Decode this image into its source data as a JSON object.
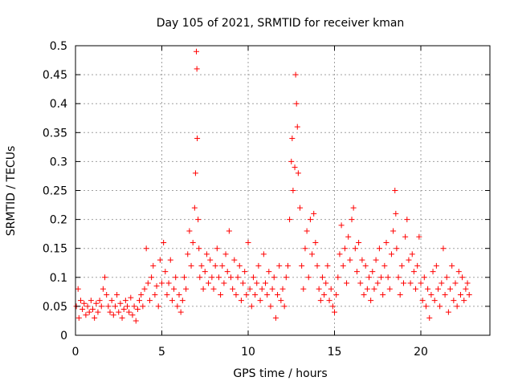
{
  "chart_data": {
    "type": "scatter",
    "title": "Day 105 of 2021, SRMTID for receiver kman",
    "xlabel": "GPS time / hours",
    "ylabel": "SRMTID / TECUs",
    "xlim": [
      0,
      24
    ],
    "ylim": [
      0,
      0.5
    ],
    "xticks": [
      0,
      5,
      10,
      15,
      20
    ],
    "xtick_labels": [
      "0",
      "5",
      "10",
      "15",
      "20"
    ],
    "yticks": [
      0,
      0.05,
      0.1,
      0.15,
      0.2,
      0.25,
      0.3,
      0.35,
      0.4,
      0.45,
      0.5
    ],
    "ytick_labels": [
      "0",
      "0.05",
      "0.1",
      "0.15",
      "0.2",
      "0.25",
      "0.3",
      "0.35",
      "0.4",
      "0.45",
      "0.5"
    ],
    "grid": true,
    "marker": "+",
    "color": "#ff0000",
    "series": [
      {
        "name": "SRMTID",
        "points": [
          [
            0.05,
            0.05
          ],
          [
            0.15,
            0.08
          ],
          [
            0.2,
            0.03
          ],
          [
            0.3,
            0.06
          ],
          [
            0.4,
            0.045
          ],
          [
            0.5,
            0.055
          ],
          [
            0.6,
            0.035
          ],
          [
            0.7,
            0.05
          ],
          [
            0.8,
            0.04
          ],
          [
            0.9,
            0.06
          ],
          [
            1.0,
            0.045
          ],
          [
            1.1,
            0.03
          ],
          [
            1.2,
            0.055
          ],
          [
            1.3,
            0.04
          ],
          [
            1.4,
            0.06
          ],
          [
            1.5,
            0.05
          ],
          [
            1.6,
            0.08
          ],
          [
            1.7,
            0.1
          ],
          [
            1.8,
            0.07
          ],
          [
            1.9,
            0.05
          ],
          [
            2.0,
            0.04
          ],
          [
            2.1,
            0.06
          ],
          [
            2.2,
            0.035
          ],
          [
            2.3,
            0.05
          ],
          [
            2.4,
            0.07
          ],
          [
            2.5,
            0.04
          ],
          [
            2.6,
            0.055
          ],
          [
            2.7,
            0.03
          ],
          [
            2.8,
            0.045
          ],
          [
            2.9,
            0.06
          ],
          [
            3.0,
            0.05
          ],
          [
            3.1,
            0.04
          ],
          [
            3.2,
            0.065
          ],
          [
            3.3,
            0.035
          ],
          [
            3.4,
            0.05
          ],
          [
            3.5,
            0.025
          ],
          [
            3.6,
            0.045
          ],
          [
            3.7,
            0.06
          ],
          [
            3.8,
            0.07
          ],
          [
            3.9,
            0.05
          ],
          [
            4.0,
            0.08
          ],
          [
            4.1,
            0.15
          ],
          [
            4.2,
            0.09
          ],
          [
            4.3,
            0.06
          ],
          [
            4.4,
            0.1
          ],
          [
            4.5,
            0.12
          ],
          [
            4.6,
            0.07
          ],
          [
            4.7,
            0.085
          ],
          [
            4.8,
            0.05
          ],
          [
            4.9,
            0.13
          ],
          [
            5.0,
            0.09
          ],
          [
            5.1,
            0.16
          ],
          [
            5.2,
            0.11
          ],
          [
            5.3,
            0.07
          ],
          [
            5.4,
            0.09
          ],
          [
            5.5,
            0.13
          ],
          [
            5.6,
            0.06
          ],
          [
            5.7,
            0.08
          ],
          [
            5.8,
            0.1
          ],
          [
            5.9,
            0.05
          ],
          [
            6.0,
            0.07
          ],
          [
            6.1,
            0.04
          ],
          [
            6.2,
            0.06
          ],
          [
            6.3,
            0.1
          ],
          [
            6.4,
            0.08
          ],
          [
            6.5,
            0.14
          ],
          [
            6.6,
            0.18
          ],
          [
            6.7,
            0.12
          ],
          [
            6.8,
            0.16
          ],
          [
            6.9,
            0.22
          ],
          [
            6.95,
            0.28
          ],
          [
            7.0,
            0.49
          ],
          [
            7.03,
            0.46
          ],
          [
            7.05,
            0.34
          ],
          [
            7.1,
            0.2
          ],
          [
            7.15,
            0.15
          ],
          [
            7.2,
            0.1
          ],
          [
            7.3,
            0.12
          ],
          [
            7.4,
            0.08
          ],
          [
            7.5,
            0.11
          ],
          [
            7.6,
            0.14
          ],
          [
            7.7,
            0.09
          ],
          [
            7.8,
            0.13
          ],
          [
            7.9,
            0.1
          ],
          [
            8.0,
            0.08
          ],
          [
            8.1,
            0.12
          ],
          [
            8.2,
            0.15
          ],
          [
            8.3,
            0.1
          ],
          [
            8.4,
            0.07
          ],
          [
            8.5,
            0.12
          ],
          [
            8.6,
            0.09
          ],
          [
            8.7,
            0.14
          ],
          [
            8.8,
            0.11
          ],
          [
            8.9,
            0.18
          ],
          [
            9.0,
            0.1
          ],
          [
            9.1,
            0.08
          ],
          [
            9.2,
            0.13
          ],
          [
            9.3,
            0.07
          ],
          [
            9.4,
            0.1
          ],
          [
            9.5,
            0.12
          ],
          [
            9.6,
            0.06
          ],
          [
            9.7,
            0.09
          ],
          [
            9.8,
            0.11
          ],
          [
            9.9,
            0.07
          ],
          [
            10.0,
            0.16
          ],
          [
            10.1,
            0.08
          ],
          [
            10.2,
            0.05
          ],
          [
            10.3,
            0.1
          ],
          [
            10.4,
            0.07
          ],
          [
            10.5,
            0.09
          ],
          [
            10.6,
            0.12
          ],
          [
            10.7,
            0.06
          ],
          [
            10.8,
            0.08
          ],
          [
            10.9,
            0.14
          ],
          [
            11.0,
            0.09
          ],
          [
            11.1,
            0.07
          ],
          [
            11.2,
            0.11
          ],
          [
            11.3,
            0.05
          ],
          [
            11.4,
            0.08
          ],
          [
            11.5,
            0.1
          ],
          [
            11.6,
            0.03
          ],
          [
            11.7,
            0.07
          ],
          [
            11.8,
            0.12
          ],
          [
            11.9,
            0.06
          ],
          [
            12.0,
            0.08
          ],
          [
            12.1,
            0.05
          ],
          [
            12.2,
            0.1
          ],
          [
            12.3,
            0.12
          ],
          [
            12.4,
            0.2
          ],
          [
            12.5,
            0.3
          ],
          [
            12.55,
            0.34
          ],
          [
            12.6,
            0.25
          ],
          [
            12.7,
            0.29
          ],
          [
            12.75,
            0.45
          ],
          [
            12.8,
            0.4
          ],
          [
            12.85,
            0.36
          ],
          [
            12.9,
            0.28
          ],
          [
            13.0,
            0.22
          ],
          [
            13.1,
            0.12
          ],
          [
            13.2,
            0.08
          ],
          [
            13.3,
            0.15
          ],
          [
            13.4,
            0.18
          ],
          [
            13.5,
            0.1
          ],
          [
            13.6,
            0.2
          ],
          [
            13.7,
            0.14
          ],
          [
            13.8,
            0.21
          ],
          [
            13.9,
            0.16
          ],
          [
            14.0,
            0.12
          ],
          [
            14.1,
            0.08
          ],
          [
            14.2,
            0.06
          ],
          [
            14.3,
            0.1
          ],
          [
            14.4,
            0.07
          ],
          [
            14.5,
            0.09
          ],
          [
            14.6,
            0.12
          ],
          [
            14.7,
            0.06
          ],
          [
            14.8,
            0.08
          ],
          [
            14.9,
            0.05
          ],
          [
            15.0,
            0.04
          ],
          [
            15.1,
            0.07
          ],
          [
            15.2,
            0.1
          ],
          [
            15.3,
            0.14
          ],
          [
            15.4,
            0.19
          ],
          [
            15.5,
            0.12
          ],
          [
            15.6,
            0.15
          ],
          [
            15.7,
            0.09
          ],
          [
            15.8,
            0.17
          ],
          [
            15.9,
            0.13
          ],
          [
            16.0,
            0.2
          ],
          [
            16.1,
            0.22
          ],
          [
            16.2,
            0.15
          ],
          [
            16.3,
            0.11
          ],
          [
            16.4,
            0.16
          ],
          [
            16.5,
            0.09
          ],
          [
            16.6,
            0.13
          ],
          [
            16.7,
            0.07
          ],
          [
            16.8,
            0.12
          ],
          [
            16.9,
            0.08
          ],
          [
            17.0,
            0.1
          ],
          [
            17.1,
            0.06
          ],
          [
            17.2,
            0.11
          ],
          [
            17.3,
            0.08
          ],
          [
            17.4,
            0.13
          ],
          [
            17.5,
            0.09
          ],
          [
            17.6,
            0.15
          ],
          [
            17.7,
            0.1
          ],
          [
            17.8,
            0.07
          ],
          [
            17.9,
            0.12
          ],
          [
            18.0,
            0.16
          ],
          [
            18.1,
            0.1
          ],
          [
            18.2,
            0.08
          ],
          [
            18.3,
            0.14
          ],
          [
            18.4,
            0.18
          ],
          [
            18.5,
            0.25
          ],
          [
            18.55,
            0.21
          ],
          [
            18.6,
            0.15
          ],
          [
            18.7,
            0.1
          ],
          [
            18.8,
            0.07
          ],
          [
            18.9,
            0.12
          ],
          [
            19.0,
            0.09
          ],
          [
            19.1,
            0.17
          ],
          [
            19.2,
            0.2
          ],
          [
            19.3,
            0.13
          ],
          [
            19.4,
            0.09
          ],
          [
            19.5,
            0.14
          ],
          [
            19.6,
            0.11
          ],
          [
            19.7,
            0.08
          ],
          [
            19.8,
            0.12
          ],
          [
            19.9,
            0.17
          ],
          [
            20.0,
            0.09
          ],
          [
            20.1,
            0.06
          ],
          [
            20.2,
            0.1
          ],
          [
            20.3,
            0.05
          ],
          [
            20.4,
            0.08
          ],
          [
            20.5,
            0.03
          ],
          [
            20.6,
            0.07
          ],
          [
            20.7,
            0.11
          ],
          [
            20.8,
            0.06
          ],
          [
            20.9,
            0.12
          ],
          [
            21.0,
            0.08
          ],
          [
            21.1,
            0.05
          ],
          [
            21.2,
            0.09
          ],
          [
            21.3,
            0.15
          ],
          [
            21.4,
            0.07
          ],
          [
            21.5,
            0.1
          ],
          [
            21.6,
            0.04
          ],
          [
            21.7,
            0.08
          ],
          [
            21.8,
            0.12
          ],
          [
            21.9,
            0.06
          ],
          [
            22.0,
            0.09
          ],
          [
            22.1,
            0.05
          ],
          [
            22.2,
            0.11
          ],
          [
            22.3,
            0.07
          ],
          [
            22.4,
            0.1
          ],
          [
            22.5,
            0.06
          ],
          [
            22.6,
            0.08
          ],
          [
            22.7,
            0.09
          ],
          [
            22.8,
            0.07
          ]
        ]
      }
    ]
  }
}
